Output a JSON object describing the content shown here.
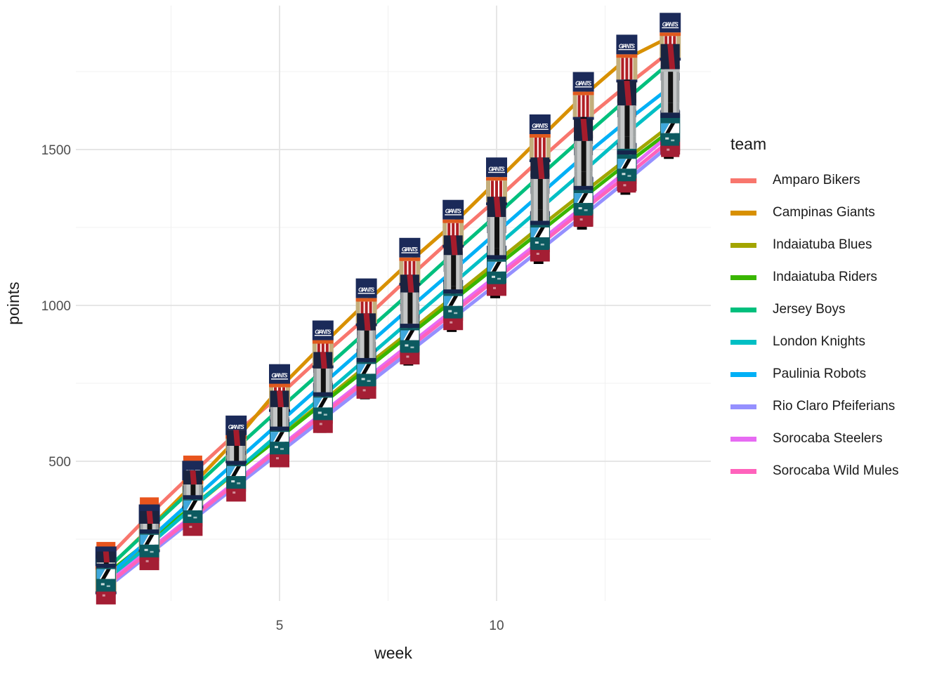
{
  "page": {
    "background": "#FFFFFF"
  },
  "chart_data": {
    "type": "line",
    "title": "",
    "xlabel": "week",
    "ylabel": "points",
    "legend_title": "team",
    "legend_position": "right",
    "grid": true,
    "marker": "team-logo-image",
    "x": [
      1,
      2,
      3,
      4,
      5,
      6,
      7,
      8,
      9,
      10,
      11,
      12,
      13,
      14
    ],
    "x_ticks_major": [
      5,
      10
    ],
    "x_ticks_minor": [
      2.5,
      7.5,
      12.5
    ],
    "y_ticks_major": [
      500,
      1000,
      1500
    ],
    "y_ticks_minor": [
      250,
      750,
      1250,
      1750
    ],
    "x_range": [
      0.3,
      14.9
    ],
    "y_range": [
      50,
      1960
    ],
    "series": [
      {
        "name": "Amparo Bikers",
        "color": "#F8766D",
        "logo": "orangeEagle",
        "values": [
          185,
          328,
          462,
          590,
          712,
          840,
          962,
          1092,
          1218,
          1340,
          1468,
          1592,
          1706,
          1815
        ]
      },
      {
        "name": "Campinas Giants",
        "color": "#D89000",
        "logo": "giants",
        "values": [
          150,
          285,
          425,
          570,
          735,
          875,
          1010,
          1140,
          1262,
          1398,
          1536,
          1672,
          1792,
          1862
        ]
      },
      {
        "name": "Indaiatuba Blues",
        "color": "#A3A500",
        "logo": "navyText",
        "values": [
          120,
          236,
          352,
          466,
          578,
          692,
          806,
          916,
          1028,
          1140,
          1252,
          1362,
          1470,
          1577
        ]
      },
      {
        "name": "Indaiatuba Riders",
        "color": "#39B600",
        "logo": "tealEagle",
        "values": [
          136,
          246,
          356,
          468,
          576,
          686,
          796,
          906,
          1016,
          1126,
          1236,
          1346,
          1455,
          1560
        ]
      },
      {
        "name": "Jersey Boys",
        "color": "#00BF7D",
        "logo": "navyRedV",
        "values": [
          152,
          282,
          412,
          542,
          668,
          792,
          916,
          1040,
          1166,
          1290,
          1416,
          1540,
          1662,
          1780
        ]
      },
      {
        "name": "London Knights",
        "color": "#00BFC4",
        "logo": "grayStripe",
        "values": [
          112,
          232,
          352,
          470,
          590,
          710,
          830,
          950,
          1070,
          1190,
          1310,
          1430,
          1552,
          1668
        ]
      },
      {
        "name": "Paulinia Robots",
        "color": "#00B0F6",
        "logo": "grayStripe",
        "values": [
          126,
          250,
          376,
          500,
          624,
          748,
          870,
          992,
          1112,
          1234,
          1356,
          1478,
          1592,
          1700
        ]
      },
      {
        "name": "Rio Claro Pfeiferians",
        "color": "#9590FF",
        "logo": "crimsonHelmet",
        "values": [
          92,
          202,
          312,
          420,
          528,
          636,
          744,
          852,
          960,
          1068,
          1178,
          1288,
          1400,
          1515
        ]
      },
      {
        "name": "Sorocaba Steelers",
        "color": "#E76BF3",
        "logo": "tealEagle",
        "values": [
          106,
          216,
          326,
          436,
          546,
          656,
          766,
          876,
          986,
          1096,
          1206,
          1318,
          1432,
          1549
        ]
      },
      {
        "name": "Sorocaba Wild Mules",
        "color": "#FF62BC",
        "logo": "jetsDiag",
        "values": [
          100,
          210,
          320,
          430,
          540,
          650,
          758,
          866,
          976,
          1086,
          1196,
          1306,
          1416,
          1530
        ]
      }
    ],
    "logo_styles": {
      "giants": {
        "navy": "#1B2A59",
        "orange": "#E05A1E",
        "khaki": "#C3AE7C",
        "red": "#B01E24",
        "white": "#FFFFFF",
        "black": "#0A0A14",
        "text": "GIANTS"
      },
      "orangeEagle": {
        "orange": "#E8541D",
        "dark": "#1B2A4A",
        "white": "#FFFFFF"
      },
      "navyText": {
        "navy": "#14305E",
        "crimson": "#A41E34",
        "light": "#BFD6E0"
      },
      "tealEagle": {
        "navy": "#16254C",
        "teal": "#0C5A60",
        "crimson": "#A41E34",
        "white": "#FFFFFF"
      },
      "navyRedV": {
        "navy": "#1A2440",
        "crimson": "#A61C2C",
        "silver": "#B9BDBD"
      },
      "grayStripe": {
        "silver": "#C5C7C7",
        "edge": "#9FA3A3",
        "black": "#121212"
      },
      "crimsonHelmet": {
        "crimson": "#A01C30",
        "navy": "#1A2F6B",
        "black": "#000000",
        "white": "#FFFFFF"
      },
      "jetsDiag": {
        "lightblue": "#3FA8DC",
        "black": "#0A0A0A",
        "teal": "#0C5A60",
        "crimson": "#A41E34",
        "white": "#FFFFFF"
      }
    },
    "axis_text_color": "#4D4D4D",
    "grid_major_color": "#E3E3E3",
    "grid_minor_color": "#F0F0F0"
  }
}
